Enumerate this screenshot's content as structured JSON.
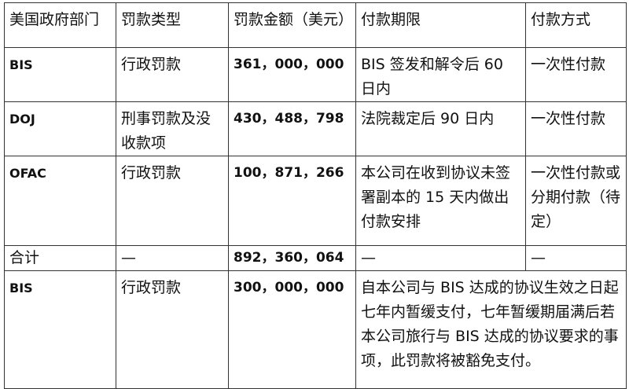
{
  "table": {
    "headers": [
      "美国政府部门",
      "罚款类型",
      "罚款金额（美元）",
      "付款期限",
      "付款方式"
    ],
    "rows": [
      {
        "agency": "BIS",
        "type": "行政罚款",
        "amount": "361，000，000",
        "deadline": "BIS 签发和解令后 60 日内",
        "method": "一次性付款"
      },
      {
        "agency": "DOJ",
        "type": "刑事罚款及没收款项",
        "amount": "430，488，798",
        "deadline": "法院裁定后 90 日内",
        "method": "一次性付款"
      },
      {
        "agency": "OFAC",
        "type": "行政罚款",
        "amount": "100，871，266",
        "deadline": "本公司在收到协议未签署副本的 15 天内做出付款安排",
        "method": "一次性付款或分期付款（待定）"
      },
      {
        "agency": "合计",
        "type": "—",
        "amount": "892，360，064",
        "deadline": "—",
        "method": "—"
      },
      {
        "agency": "BIS",
        "type": "行政罚款",
        "amount": "300，000，000",
        "note": "自本公司与 BIS 达成的协议生效之日起七年内暂缓支付，七年暂缓期届满后若本公司旅行与 BIS 达成的协议要求的事项，此罚款将被豁免支付。"
      }
    ]
  }
}
